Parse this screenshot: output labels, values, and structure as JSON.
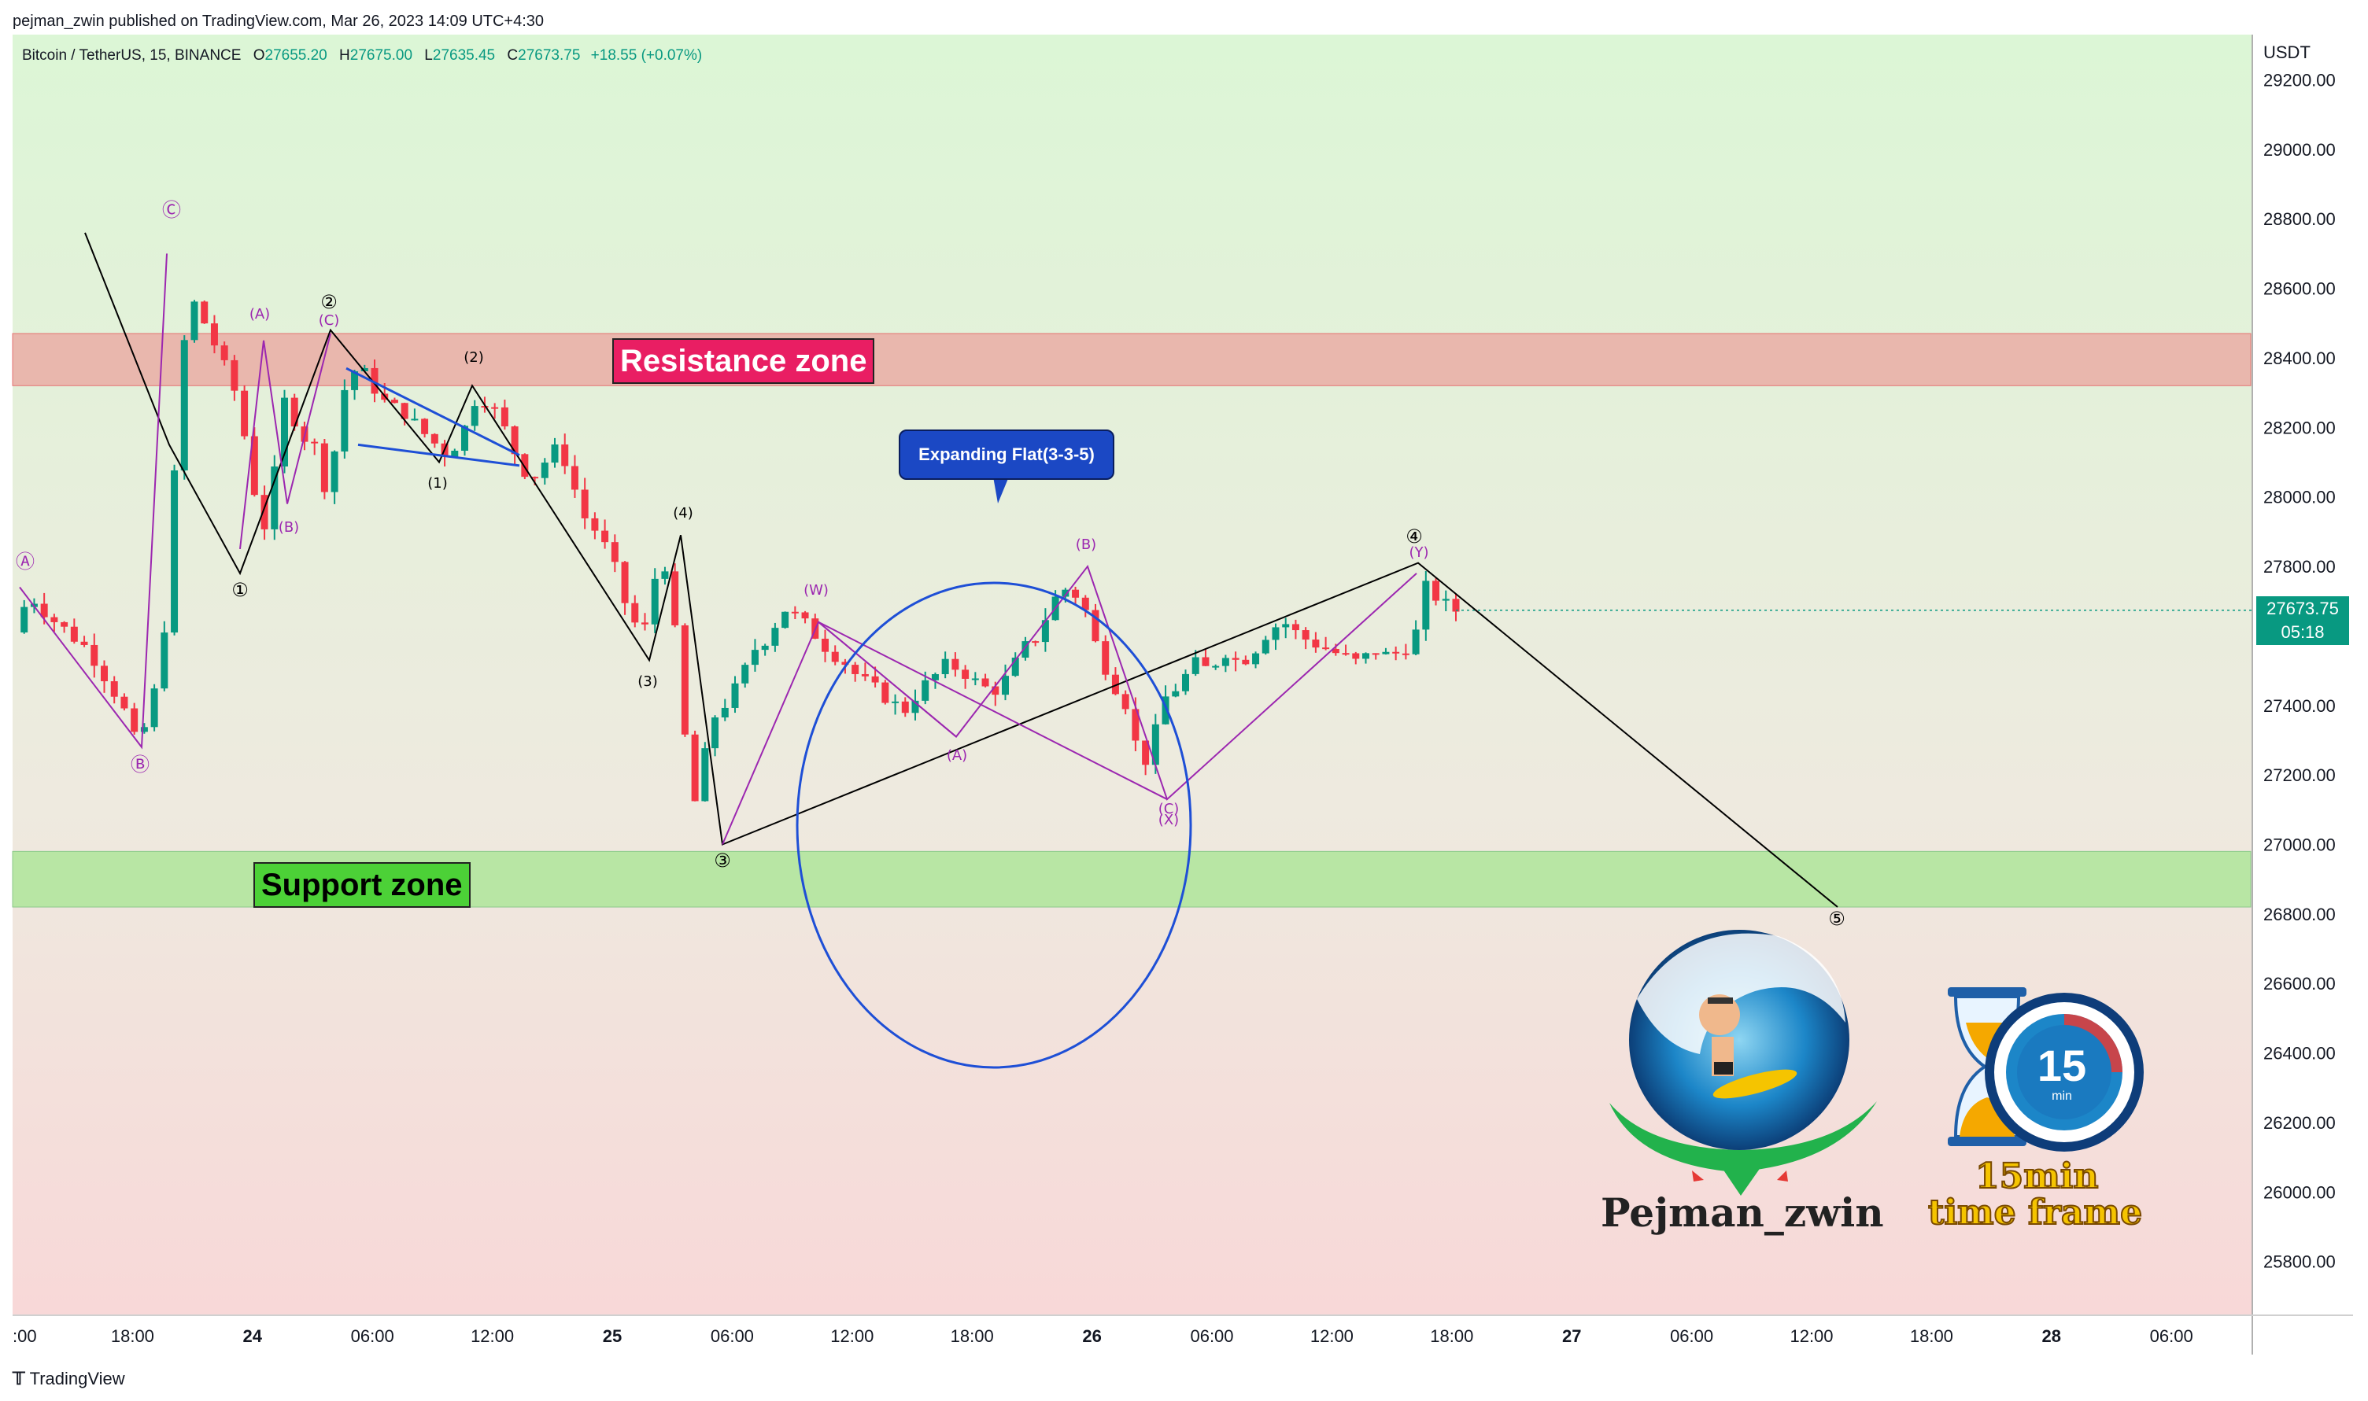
{
  "header": {
    "published_text": "pejman_zwin published on TradingView.com, Mar 26, 2023 14:09 UTC+4:30"
  },
  "legend": {
    "symbol": "Bitcoin / TetherUS, 15, BINANCE",
    "open_label": "O",
    "open": "27655.20",
    "high_label": "H",
    "high": "27675.00",
    "low_label": "L",
    "low": "27635.45",
    "close_label": "C",
    "close": "27673.75",
    "change": "+18.55 (+0.07%)"
  },
  "price_tag": {
    "price": "27673.75",
    "countdown": "05:18"
  },
  "axis": {
    "currency": "USDT"
  },
  "zones": {
    "resistance": {
      "label": "Resistance zone",
      "low": 28320,
      "high": 28470,
      "color": "#e9b7ad"
    },
    "support": {
      "label": "Support zone",
      "low": 26820,
      "high": 26980,
      "color": "#b8e6a4"
    }
  },
  "callout": {
    "text": "Expanding Flat(3-3-5)"
  },
  "branding": {
    "name": "Pejman_zwin",
    "tf_number": "15",
    "tf_unit": "min",
    "tf_line1": "15min",
    "tf_line2": "time frame",
    "footer": "TradingView"
  },
  "colors": {
    "up": "#089981",
    "down": "#f23645",
    "wave_black": "#000000",
    "wave_purple": "#9c27b0",
    "blue": "#1e4fd6",
    "bg_top": "#ddf5d8",
    "bg_bottom": "#f8dada"
  },
  "chart_data": {
    "type": "candlestick",
    "title": "Bitcoin / TetherUS, 15, BINANCE",
    "ylabel": "USDT",
    "ylim": [
      25650,
      29330
    ],
    "y_ticks": [
      "29200.00",
      "29000.00",
      "28800.00",
      "28600.00",
      "28400.00",
      "28200.00",
      "28000.00",
      "27800.00",
      "27600.00",
      "27400.00",
      "27200.00",
      "27000.00",
      "26800.00",
      "26600.00",
      "26400.00",
      "26200.00",
      "26000.00",
      "25800.00"
    ],
    "x_ticks": [
      ":00",
      "18:00",
      "24",
      "06:00",
      "12:00",
      "25",
      "06:00",
      "12:00",
      "18:00",
      "26",
      "06:00",
      "12:00",
      "18:00",
      "27",
      "06:00",
      "12:00",
      "18:00",
      "28",
      "06:00"
    ],
    "grid": false,
    "price_path": [
      [
        0,
        27610
      ],
      [
        8,
        27720
      ],
      [
        20,
        27650
      ],
      [
        40,
        27560
      ],
      [
        58,
        27400
      ],
      [
        64,
        27300
      ],
      [
        72,
        27350
      ],
      [
        78,
        27520
      ],
      [
        82,
        27700
      ],
      [
        86,
        28080
      ],
      [
        90,
        28420
      ],
      [
        96,
        28560
      ],
      [
        104,
        28480
      ],
      [
        112,
        28380
      ],
      [
        120,
        28280
      ],
      [
        128,
        28030
      ],
      [
        136,
        27880
      ],
      [
        140,
        28100
      ],
      [
        146,
        28320
      ],
      [
        152,
        28180
      ],
      [
        160,
        28160
      ],
      [
        168,
        28000
      ],
      [
        176,
        28300
      ],
      [
        184,
        28380
      ],
      [
        192,
        28320
      ],
      [
        200,
        28260
      ],
      [
        208,
        28250
      ],
      [
        216,
        28200
      ],
      [
        224,
        28160
      ],
      [
        232,
        28120
      ],
      [
        240,
        28180
      ],
      [
        248,
        28300
      ],
      [
        256,
        28260
      ],
      [
        264,
        28180
      ],
      [
        272,
        28080
      ],
      [
        280,
        28060
      ],
      [
        288,
        28140
      ],
      [
        296,
        28100
      ],
      [
        304,
        27950
      ],
      [
        312,
        27900
      ],
      [
        320,
        27820
      ],
      [
        328,
        27680
      ],
      [
        336,
        27600
      ],
      [
        340,
        27650
      ],
      [
        344,
        27800
      ],
      [
        348,
        27820
      ],
      [
        352,
        27700
      ],
      [
        356,
        27500
      ],
      [
        360,
        27260
      ],
      [
        366,
        27080
      ],
      [
        372,
        27350
      ],
      [
        380,
        27400
      ],
      [
        388,
        27460
      ],
      [
        396,
        27560
      ],
      [
        404,
        27600
      ],
      [
        412,
        27680
      ],
      [
        420,
        27650
      ],
      [
        428,
        27610
      ],
      [
        436,
        27560
      ],
      [
        444,
        27530
      ],
      [
        452,
        27480
      ],
      [
        460,
        27450
      ],
      [
        468,
        27420
      ],
      [
        476,
        27380
      ],
      [
        484,
        27440
      ],
      [
        492,
        27480
      ],
      [
        500,
        27520
      ],
      [
        508,
        27500
      ],
      [
        516,
        27460
      ],
      [
        524,
        27440
      ],
      [
        532,
        27480
      ],
      [
        540,
        27560
      ],
      [
        548,
        27600
      ],
      [
        556,
        27700
      ],
      [
        564,
        27740
      ],
      [
        572,
        27700
      ],
      [
        580,
        27560
      ],
      [
        588,
        27470
      ],
      [
        596,
        27400
      ],
      [
        600,
        27300
      ],
      [
        604,
        27220
      ],
      [
        610,
        27300
      ],
      [
        616,
        27420
      ],
      [
        624,
        27460
      ],
      [
        632,
        27520
      ],
      [
        640,
        27500
      ],
      [
        648,
        27560
      ],
      [
        656,
        27520
      ],
      [
        664,
        27560
      ],
      [
        672,
        27620
      ],
      [
        680,
        27640
      ],
      [
        688,
        27600
      ],
      [
        696,
        27580
      ],
      [
        704,
        27560
      ],
      [
        712,
        27540
      ],
      [
        720,
        27520
      ],
      [
        728,
        27560
      ],
      [
        736,
        27540
      ],
      [
        744,
        27560
      ],
      [
        752,
        27620
      ],
      [
        756,
        27740
      ],
      [
        760,
        27720
      ],
      [
        766,
        27690
      ],
      [
        772,
        27673.75
      ]
    ],
    "candle_count": 144,
    "waves": {
      "black_impulse": [
        {
          "label": "①",
          "price": 27780
        },
        {
          "label": "②",
          "price": 28480
        },
        {
          "label": "③",
          "price": 27000
        },
        {
          "label": "④",
          "price": 27810
        },
        {
          "label": "⑤",
          "price": 26820
        }
      ],
      "black_minor": [
        {
          "label": "(1)",
          "price": 28100
        },
        {
          "label": "(2)",
          "price": 28320
        },
        {
          "label": "(3)",
          "price": 27530
        },
        {
          "label": "(4)",
          "price": 27890
        }
      ],
      "purple_abc_left": [
        {
          "label": "Ⓐ",
          "price": 27740
        },
        {
          "label": "Ⓑ",
          "price": 27280
        },
        {
          "label": "Ⓒ",
          "price": 28760
        },
        {
          "label": "(A)",
          "price": 28450
        },
        {
          "label": "(B)",
          "price": 27970
        },
        {
          "label": "(C)",
          "price": 28470
        }
      ],
      "purple_wxy": [
        {
          "label": "(W)",
          "price": 27640
        },
        {
          "label": "(A)",
          "price": 27310
        },
        {
          "label": "(B)",
          "price": 27800
        },
        {
          "label": "(C)",
          "price": 27130
        },
        {
          "label": "(X)",
          "price": 27130
        },
        {
          "label": "(Y)",
          "price": 27780
        }
      ]
    },
    "annotations": [
      "Resistance zone",
      "Support zone",
      "Expanding Flat(3-3-5)"
    ]
  }
}
